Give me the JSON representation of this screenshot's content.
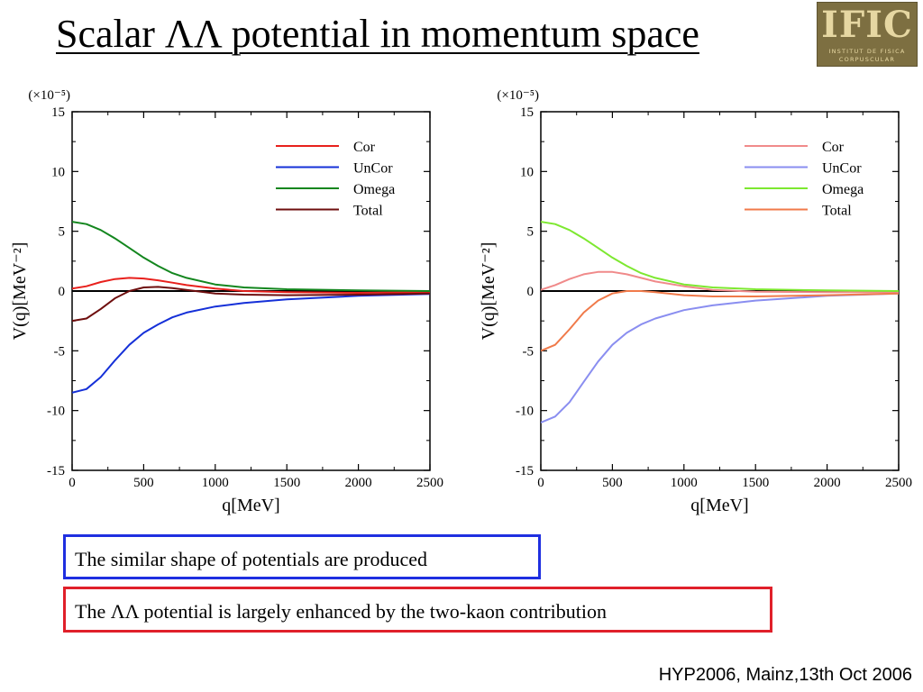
{
  "slide": {
    "title": "Scalar ΛΛ potential in momentum space",
    "logo": {
      "text": "IFIC",
      "line1": "INSTITUT DE FISICA",
      "line2": "CORPUSCULAR"
    },
    "note_blue": "The similar shape of potentials are produced",
    "note_red": "The ΛΛ potential is largely enhanced by the two-kaon contribution",
    "footer": "HYP2006, Mainz,13th Oct 2006"
  },
  "chart_data": [
    {
      "type": "line",
      "xlabel": "q[MeV]",
      "ylabel": "V(q)[MeV⁻²]",
      "scale_label": "(×10⁻⁵)",
      "xlim": [
        0,
        2500
      ],
      "ylim": [
        -15,
        15
      ],
      "xticks": [
        0,
        500,
        1000,
        1500,
        2000,
        2500
      ],
      "yticks": [
        15,
        10,
        5,
        0,
        -5,
        -10,
        -15
      ],
      "legend_position": "top-right",
      "series": [
        {
          "name": "Cor",
          "color": "#e8201c",
          "x": [
            0,
            100,
            200,
            300,
            400,
            500,
            600,
            700,
            800,
            1000,
            1200,
            1500,
            2000,
            2500
          ],
          "y": [
            0.2,
            0.4,
            0.75,
            1.0,
            1.1,
            1.05,
            0.9,
            0.7,
            0.5,
            0.2,
            0.0,
            -0.1,
            -0.15,
            -0.1
          ]
        },
        {
          "name": "UnCor",
          "color": "#1530d8",
          "x": [
            0,
            100,
            200,
            300,
            400,
            500,
            600,
            700,
            800,
            1000,
            1200,
            1500,
            2000,
            2500
          ],
          "y": [
            -8.5,
            -8.2,
            -7.2,
            -5.8,
            -4.5,
            -3.5,
            -2.8,
            -2.2,
            -1.8,
            -1.3,
            -1.0,
            -0.7,
            -0.4,
            -0.25
          ]
        },
        {
          "name": "Omega",
          "color": "#13861e",
          "x": [
            0,
            100,
            200,
            300,
            400,
            500,
            600,
            700,
            800,
            1000,
            1200,
            1500,
            2000,
            2500
          ],
          "y": [
            5.8,
            5.6,
            5.1,
            4.4,
            3.6,
            2.8,
            2.1,
            1.5,
            1.1,
            0.55,
            0.3,
            0.15,
            0.05,
            0.0
          ]
        },
        {
          "name": "Total",
          "color": "#6e0e0e",
          "x": [
            0,
            100,
            200,
            300,
            400,
            500,
            600,
            700,
            800,
            1000,
            1200,
            1500,
            2000,
            2500
          ],
          "y": [
            -2.5,
            -2.3,
            -1.5,
            -0.6,
            0.0,
            0.3,
            0.35,
            0.25,
            0.1,
            -0.2,
            -0.3,
            -0.35,
            -0.3,
            -0.2
          ]
        }
      ]
    },
    {
      "type": "line",
      "xlabel": "q[MeV]",
      "ylabel": "V(q)[MeV⁻²]",
      "scale_label": "(×10⁻⁵)",
      "xlim": [
        0,
        2500
      ],
      "ylim": [
        -15,
        15
      ],
      "xticks": [
        0,
        500,
        1000,
        1500,
        2000,
        2500
      ],
      "yticks": [
        15,
        10,
        5,
        0,
        -5,
        -10,
        -15
      ],
      "legend_position": "top-right",
      "series": [
        {
          "name": "Cor",
          "color": "#f08a8a",
          "x": [
            0,
            100,
            200,
            300,
            400,
            500,
            600,
            700,
            800,
            1000,
            1200,
            1500,
            2000,
            2500
          ],
          "y": [
            0.1,
            0.5,
            1.0,
            1.4,
            1.6,
            1.6,
            1.4,
            1.1,
            0.8,
            0.4,
            0.1,
            -0.05,
            -0.1,
            -0.1
          ]
        },
        {
          "name": "UnCor",
          "color": "#8a8ef0",
          "x": [
            0,
            100,
            200,
            300,
            400,
            500,
            600,
            700,
            800,
            1000,
            1200,
            1500,
            2000,
            2500
          ],
          "y": [
            -11.0,
            -10.5,
            -9.3,
            -7.6,
            -5.9,
            -4.5,
            -3.5,
            -2.8,
            -2.3,
            -1.6,
            -1.2,
            -0.8,
            -0.4,
            -0.2
          ]
        },
        {
          "name": "Omega",
          "color": "#7de830",
          "x": [
            0,
            100,
            200,
            300,
            400,
            500,
            600,
            700,
            800,
            1000,
            1200,
            1500,
            2000,
            2500
          ],
          "y": [
            5.8,
            5.6,
            5.1,
            4.4,
            3.6,
            2.8,
            2.1,
            1.5,
            1.1,
            0.55,
            0.3,
            0.15,
            0.05,
            0.0
          ]
        },
        {
          "name": "Total",
          "color": "#f07a4a",
          "x": [
            0,
            100,
            200,
            300,
            400,
            500,
            600,
            700,
            800,
            1000,
            1200,
            1500,
            2000,
            2500
          ],
          "y": [
            -5.0,
            -4.5,
            -3.2,
            -1.8,
            -0.8,
            -0.2,
            0.0,
            0.0,
            -0.1,
            -0.35,
            -0.45,
            -0.45,
            -0.35,
            -0.2
          ]
        }
      ]
    }
  ]
}
